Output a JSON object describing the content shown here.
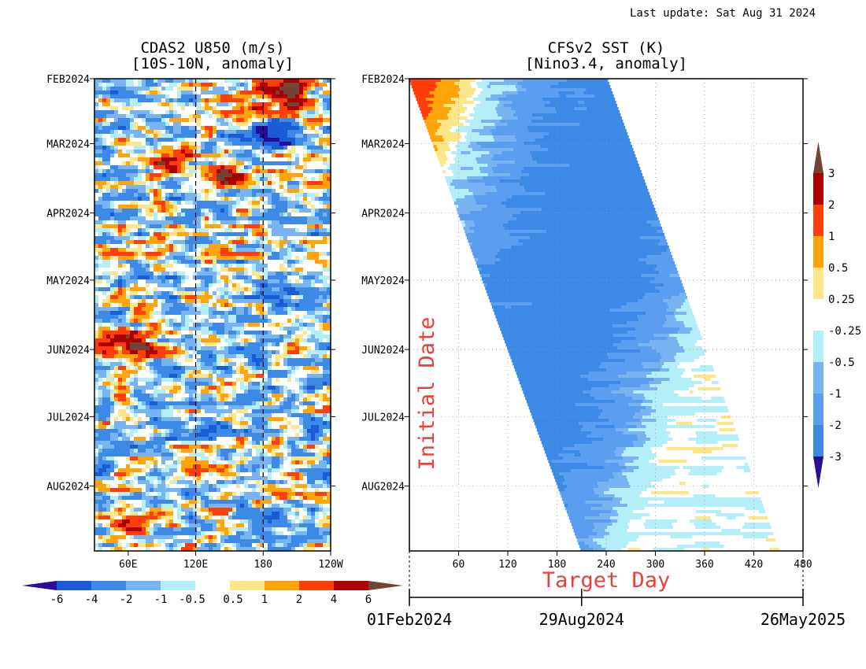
{
  "header": {
    "last_update": "Last update: Sat Aug 31 2024"
  },
  "colors": {
    "u850_scale": [
      "#2a0c98",
      "#1a5cd6",
      "#3c8ae6",
      "#78b4f2",
      "#b4eef8",
      "#ffffff",
      "#fde68a",
      "#ffa40a",
      "#ff3e0a",
      "#ab0000",
      "#734433"
    ],
    "sst_scale": [
      "#2a0c98",
      "#1a5cd6",
      "#3c8ae6",
      "#5a9ef0",
      "#78b4f2",
      "#b4eef8",
      "#ffffff",
      "#fde68a",
      "#ffa40a",
      "#ff3e0a",
      "#ab0000",
      "#734433"
    ],
    "annotation": "#e8403a"
  },
  "chart_data": [
    {
      "type": "heatmap",
      "title": "CDAS2 U850 (m/s)",
      "subtitle": "[10S-10N, anomaly]",
      "x_ticks": [
        "60E",
        "120E",
        "180",
        "120W"
      ],
      "x_range": [
        30,
        240
      ],
      "x_dashed_lines": [
        120,
        180
      ],
      "y_ticks": [
        "FEB2024",
        "MAR2024",
        "APR2024",
        "MAY2024",
        "JUN2024",
        "JUL2024",
        "AUG2024"
      ],
      "y_range": [
        "2024-02-01",
        "2024-08-30"
      ],
      "colorbar": {
        "labels": [
          "-6",
          "-4",
          "-2",
          "-1",
          "-0.5",
          "0.5",
          "1",
          "2",
          "4",
          "6"
        ],
        "orientation": "horizontal"
      },
      "features": [
        {
          "lon": 95,
          "date": "2024-03-08",
          "value": 6.5
        },
        {
          "lon": 145,
          "date": "2024-03-15",
          "value": 5
        },
        {
          "lon": 200,
          "date": "2024-02-03",
          "value": 6
        },
        {
          "lon": 160,
          "date": "2024-02-12",
          "value": 4
        },
        {
          "lon": 210,
          "date": "2024-02-14",
          "value": 4
        },
        {
          "lon": 58,
          "date": "2024-05-28",
          "value": 5
        },
        {
          "lon": 75,
          "date": "2024-06-01",
          "value": 4
        },
        {
          "lon": 65,
          "date": "2024-08-18",
          "value": 6
        },
        {
          "lon": 190,
          "date": "2024-02-26",
          "value": -6
        },
        {
          "lon": 160,
          "date": "2024-06-03",
          "value": -4
        },
        {
          "lon": 190,
          "date": "2024-05-05",
          "value": -4
        }
      ]
    },
    {
      "type": "heatmap",
      "title": "CFSv2 SST (K)",
      "subtitle": "[Nino3.4, anomaly]",
      "xlabel": "Target Day",
      "ylabel": "Initial Date",
      "x_ticks": [
        "60",
        "120",
        "180",
        "240",
        "300",
        "360",
        "420",
        "480"
      ],
      "x_range": [
        0,
        480
      ],
      "y_ticks": [
        "FEB2024",
        "MAR2024",
        "APR2024",
        "MAY2024",
        "JUN2024",
        "JUL2024",
        "AUG2024"
      ],
      "y_range": [
        "2024-02-01",
        "2024-08-30"
      ],
      "date_axis_labels": [
        "01Feb2024",
        "29Aug2024",
        "26May2025"
      ],
      "colorbar": {
        "labels": [
          "3",
          "2",
          "1",
          "0.5",
          "0.25",
          "-0.25",
          "-0.5",
          "-1",
          "-2",
          "-3"
        ],
        "orientation": "vertical"
      },
      "grid": true,
      "forecast_window": {
        "lead_start_first": 0,
        "lead_end_first": 240,
        "lead_start_last": 210,
        "lead_end_last": 450
      },
      "anomaly_profile": [
        {
          "valid_date": "2024-02-01",
          "value": 2.4
        },
        {
          "valid_date": "2024-03-05",
          "value": 2.0
        },
        {
          "valid_date": "2024-03-25",
          "value": 1.1
        },
        {
          "valid_date": "2024-04-10",
          "value": 0.7
        },
        {
          "valid_date": "2024-04-25",
          "value": 0.35
        },
        {
          "valid_date": "2024-05-08",
          "value": -0.1
        },
        {
          "valid_date": "2024-05-25",
          "value": -0.3
        },
        {
          "valid_date": "2024-06-15",
          "value": -0.55
        },
        {
          "valid_date": "2024-07-10",
          "value": -0.75
        },
        {
          "valid_date": "2024-08-10",
          "value": -1.1
        },
        {
          "valid_date": "2024-09-15",
          "value": -1.2
        },
        {
          "valid_date": "2024-10-25",
          "value": -1.5
        },
        {
          "valid_date": "2024-12-05",
          "value": -1.65
        },
        {
          "valid_date": "2025-01-10",
          "value": -1.3
        },
        {
          "valid_date": "2025-02-15",
          "value": -0.9
        },
        {
          "valid_date": "2025-03-20",
          "value": -0.6
        },
        {
          "valid_date": "2025-04-15",
          "value": -0.3
        },
        {
          "valid_date": "2025-05-10",
          "value": 0.1
        },
        {
          "valid_date": "2025-05-26",
          "value": 0.3
        }
      ]
    }
  ]
}
